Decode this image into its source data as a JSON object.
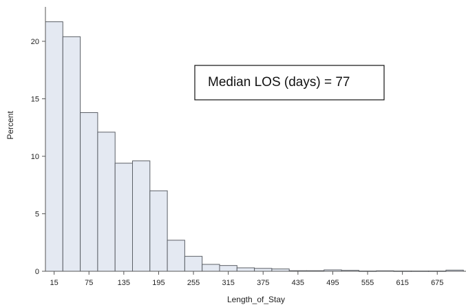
{
  "chart_data": {
    "type": "bar",
    "subtype": "histogram",
    "xlabel": "Length_of_Stay",
    "ylabel": "Percent",
    "bin_width": 30,
    "bin_start": 0,
    "x_ticks": [
      15,
      75,
      135,
      195,
      255,
      315,
      375,
      435,
      495,
      555,
      615,
      675
    ],
    "y_ticks": [
      0,
      5,
      10,
      15,
      20
    ],
    "ylim": [
      0,
      23
    ],
    "xlim": [
      0,
      720
    ],
    "bins": [
      {
        "center": 15,
        "percent": 21.7
      },
      {
        "center": 45,
        "percent": 20.4
      },
      {
        "center": 75,
        "percent": 13.8
      },
      {
        "center": 105,
        "percent": 12.1
      },
      {
        "center": 135,
        "percent": 9.4
      },
      {
        "center": 165,
        "percent": 9.6
      },
      {
        "center": 195,
        "percent": 7.0
      },
      {
        "center": 225,
        "percent": 2.7
      },
      {
        "center": 255,
        "percent": 1.3
      },
      {
        "center": 285,
        "percent": 0.6
      },
      {
        "center": 315,
        "percent": 0.5
      },
      {
        "center": 345,
        "percent": 0.3
      },
      {
        "center": 375,
        "percent": 0.25
      },
      {
        "center": 405,
        "percent": 0.2
      },
      {
        "center": 435,
        "percent": 0.05
      },
      {
        "center": 465,
        "percent": 0.05
      },
      {
        "center": 495,
        "percent": 0.12
      },
      {
        "center": 525,
        "percent": 0.08
      },
      {
        "center": 555,
        "percent": 0.02
      },
      {
        "center": 585,
        "percent": 0.04
      },
      {
        "center": 615,
        "percent": 0.02
      },
      {
        "center": 645,
        "percent": 0.02
      },
      {
        "center": 675,
        "percent": 0.02
      },
      {
        "center": 705,
        "percent": 0.1
      }
    ],
    "annotation": "Median LOS (days) = 77",
    "grid": false
  }
}
